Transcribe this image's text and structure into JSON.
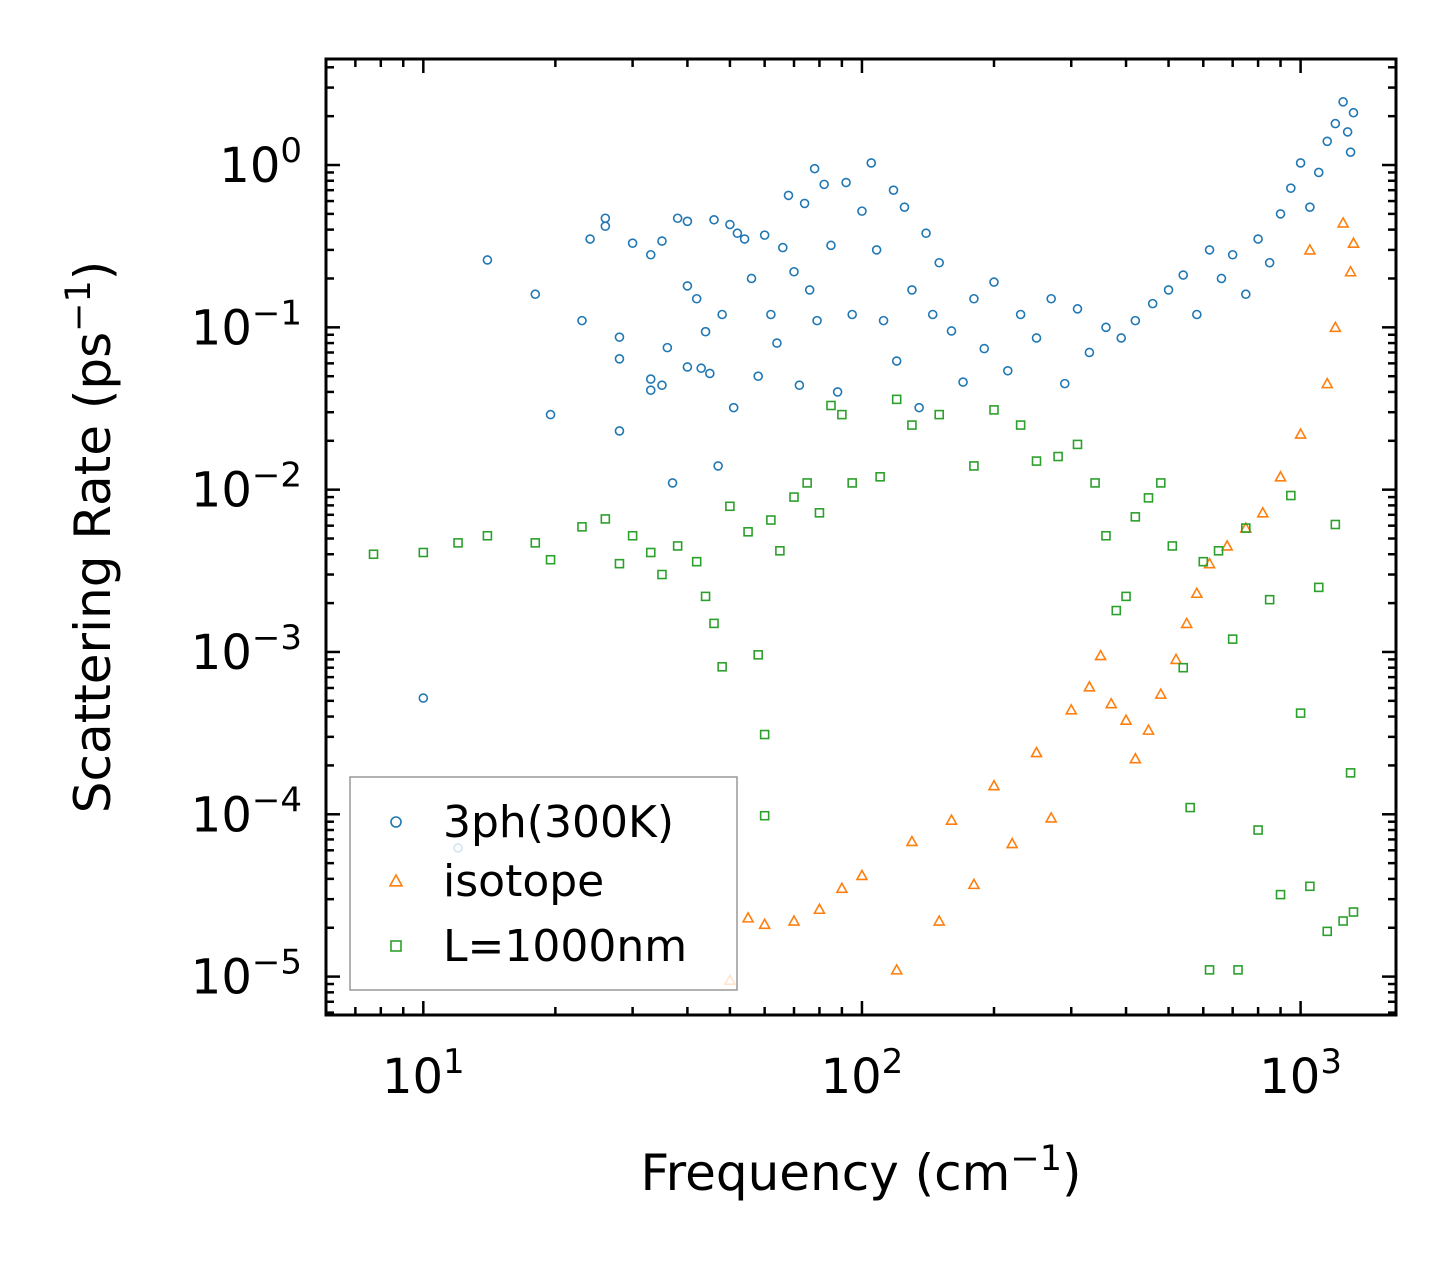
{
  "chart_data": {
    "type": "scatter",
    "title": "",
    "xlabel": "Frequency (cm",
    "xlabel_sup": "−1",
    "xlabel_end": ")",
    "ylabel": "Scattering Rate (ps",
    "ylabel_sup": "−1",
    "ylabel_end": ")",
    "xscale": "log",
    "yscale": "log",
    "xlim": [
      6.0,
      1650
    ],
    "ylim": [
      5.8e-06,
      4.5
    ],
    "x_ticks": [
      {
        "value": 10,
        "base": "10",
        "exp": "1"
      },
      {
        "value": 100,
        "base": "10",
        "exp": "2"
      },
      {
        "value": 1000,
        "base": "10",
        "exp": "3"
      }
    ],
    "y_ticks": [
      {
        "value": 1,
        "base": "10",
        "exp": "0"
      },
      {
        "value": 0.1,
        "base": "10",
        "exp": "−1"
      },
      {
        "value": 0.01,
        "base": "10",
        "exp": "−2"
      },
      {
        "value": 0.001,
        "base": "10",
        "exp": "−3"
      },
      {
        "value": 0.0001,
        "base": "10",
        "exp": "−4"
      },
      {
        "value": 1e-05,
        "base": "10",
        "exp": "−5"
      }
    ],
    "legend_position": "lower-left",
    "series": [
      {
        "name": "3ph(300K)",
        "marker": "circle",
        "color": "#1f77b4",
        "points": [
          [
            10,
            0.00052
          ],
          [
            12,
            6.2e-05
          ],
          [
            14,
            0.26
          ],
          [
            18,
            0.16
          ],
          [
            19.5,
            0.029
          ],
          [
            23,
            0.11
          ],
          [
            24,
            0.35
          ],
          [
            26,
            0.47
          ],
          [
            26,
            0.42
          ],
          [
            28,
            0.087
          ],
          [
            28,
            0.064
          ],
          [
            28,
            0.023
          ],
          [
            30,
            0.33
          ],
          [
            33,
            0.28
          ],
          [
            33,
            0.048
          ],
          [
            33,
            0.041
          ],
          [
            35,
            0.34
          ],
          [
            35,
            0.044
          ],
          [
            36,
            0.075
          ],
          [
            37,
            0.011
          ],
          [
            38,
            0.47
          ],
          [
            40,
            0.45
          ],
          [
            40,
            0.18
          ],
          [
            40,
            0.057
          ],
          [
            42,
            0.15
          ],
          [
            43,
            0.056
          ],
          [
            44,
            0.094
          ],
          [
            45,
            0.052
          ],
          [
            46,
            0.46
          ],
          [
            47,
            0.014
          ],
          [
            48,
            0.12
          ],
          [
            50,
            0.43
          ],
          [
            51,
            0.032
          ],
          [
            52,
            0.38
          ],
          [
            54,
            0.35
          ],
          [
            56,
            0.2
          ],
          [
            58,
            0.05
          ],
          [
            60,
            0.37
          ],
          [
            62,
            0.12
          ],
          [
            64,
            0.08
          ],
          [
            66,
            0.31
          ],
          [
            68,
            0.65
          ],
          [
            70,
            0.22
          ],
          [
            72,
            0.044
          ],
          [
            74,
            0.58
          ],
          [
            76,
            0.17
          ],
          [
            78,
            0.95
          ],
          [
            79,
            0.11
          ],
          [
            82,
            0.76
          ],
          [
            85,
            0.32
          ],
          [
            88,
            0.04
          ],
          [
            92,
            0.78
          ],
          [
            95,
            0.12
          ],
          [
            100,
            0.52
          ],
          [
            105,
            1.03
          ],
          [
            108,
            0.3
          ],
          [
            112,
            0.11
          ],
          [
            118,
            0.7
          ],
          [
            120,
            0.062
          ],
          [
            125,
            0.55
          ],
          [
            130,
            0.17
          ],
          [
            135,
            0.032
          ],
          [
            140,
            0.38
          ],
          [
            145,
            0.12
          ],
          [
            150,
            0.25
          ],
          [
            160,
            0.095
          ],
          [
            170,
            0.046
          ],
          [
            180,
            0.15
          ],
          [
            190,
            0.074
          ],
          [
            200,
            0.19
          ],
          [
            215,
            0.054
          ],
          [
            230,
            0.12
          ],
          [
            250,
            0.086
          ],
          [
            270,
            0.15
          ],
          [
            290,
            0.045
          ],
          [
            310,
            0.13
          ],
          [
            330,
            0.07
          ],
          [
            360,
            0.1
          ],
          [
            390,
            0.086
          ],
          [
            420,
            0.11
          ],
          [
            460,
            0.14
          ],
          [
            500,
            0.17
          ],
          [
            540,
            0.21
          ],
          [
            580,
            0.12
          ],
          [
            620,
            0.3
          ],
          [
            660,
            0.2
          ],
          [
            700,
            0.28
          ],
          [
            750,
            0.16
          ],
          [
            800,
            0.35
          ],
          [
            850,
            0.25
          ],
          [
            900,
            0.5
          ],
          [
            950,
            0.72
          ],
          [
            1000,
            1.03
          ],
          [
            1050,
            0.55
          ],
          [
            1100,
            0.9
          ],
          [
            1150,
            1.4
          ],
          [
            1200,
            1.8
          ],
          [
            1250,
            2.45
          ],
          [
            1280,
            1.6
          ],
          [
            1300,
            1.2
          ],
          [
            1320,
            2.1
          ]
        ]
      },
      {
        "name": "isotope",
        "marker": "triangle",
        "color": "#ff7f0e",
        "points": [
          [
            50,
            9.5e-06
          ],
          [
            55,
            2.3e-05
          ],
          [
            60,
            2.1e-05
          ],
          [
            70,
            2.2e-05
          ],
          [
            80,
            2.6e-05
          ],
          [
            90,
            3.5e-05
          ],
          [
            100,
            4.2e-05
          ],
          [
            120,
            1.1e-05
          ],
          [
            130,
            6.8e-05
          ],
          [
            150,
            2.2e-05
          ],
          [
            160,
            9.2e-05
          ],
          [
            180,
            3.7e-05
          ],
          [
            200,
            0.00015
          ],
          [
            220,
            6.6e-05
          ],
          [
            250,
            0.00024
          ],
          [
            270,
            9.5e-05
          ],
          [
            300,
            0.00044
          ],
          [
            330,
            0.00061
          ],
          [
            350,
            0.00095
          ],
          [
            370,
            0.00048
          ],
          [
            400,
            0.00038
          ],
          [
            420,
            0.00022
          ],
          [
            450,
            0.00033
          ],
          [
            480,
            0.00055
          ],
          [
            520,
            0.0009
          ],
          [
            550,
            0.0015
          ],
          [
            580,
            0.0023
          ],
          [
            620,
            0.0035
          ],
          [
            680,
            0.0045
          ],
          [
            750,
            0.0058
          ],
          [
            820,
            0.0072
          ],
          [
            900,
            0.012
          ],
          [
            1000,
            0.022
          ],
          [
            1050,
            0.3
          ],
          [
            1150,
            0.045
          ],
          [
            1200,
            0.1
          ],
          [
            1250,
            0.44
          ],
          [
            1300,
            0.22
          ],
          [
            1320,
            0.33
          ]
        ]
      },
      {
        "name": "L=1000nm",
        "marker": "square",
        "color": "#2ca02c",
        "points": [
          [
            7.7,
            0.004
          ],
          [
            10,
            0.0041
          ],
          [
            12,
            0.0047
          ],
          [
            14,
            0.0052
          ],
          [
            18,
            0.0047
          ],
          [
            19.5,
            0.0037
          ],
          [
            23,
            0.0059
          ],
          [
            26,
            0.0066
          ],
          [
            28,
            0.0035
          ],
          [
            30,
            0.0052
          ],
          [
            33,
            0.0041
          ],
          [
            35,
            0.003
          ],
          [
            38,
            0.0045
          ],
          [
            42,
            0.0036
          ],
          [
            44,
            0.0022
          ],
          [
            46,
            0.0015
          ],
          [
            48,
            0.00081
          ],
          [
            50,
            0.0079
          ],
          [
            55,
            0.0055
          ],
          [
            58,
            0.00096
          ],
          [
            60,
            0.00031
          ],
          [
            60,
            9.8e-05
          ],
          [
            62,
            0.0065
          ],
          [
            65,
            0.0042
          ],
          [
            70,
            0.009
          ],
          [
            75,
            0.011
          ],
          [
            80,
            0.0072
          ],
          [
            85,
            0.033
          ],
          [
            90,
            0.029
          ],
          [
            95,
            0.011
          ],
          [
            110,
            0.012
          ],
          [
            120,
            0.036
          ],
          [
            130,
            0.025
          ],
          [
            150,
            0.029
          ],
          [
            180,
            0.014
          ],
          [
            200,
            0.031
          ],
          [
            230,
            0.025
          ],
          [
            250,
            0.015
          ],
          [
            280,
            0.016
          ],
          [
            310,
            0.019
          ],
          [
            340,
            0.011
          ],
          [
            360,
            0.0052
          ],
          [
            380,
            0.0018
          ],
          [
            400,
            0.0022
          ],
          [
            420,
            0.0068
          ],
          [
            450,
            0.0089
          ],
          [
            480,
            0.011
          ],
          [
            510,
            0.0045
          ],
          [
            540,
            0.0008
          ],
          [
            560,
            0.00011
          ],
          [
            600,
            0.0036
          ],
          [
            620,
            1.1e-05
          ],
          [
            650,
            0.0042
          ],
          [
            700,
            0.0012
          ],
          [
            720,
            1.1e-05
          ],
          [
            750,
            0.0058
          ],
          [
            800,
            8e-05
          ],
          [
            850,
            0.0021
          ],
          [
            900,
            3.2e-05
          ],
          [
            950,
            0.0092
          ],
          [
            1000,
            0.00042
          ],
          [
            1050,
            3.6e-05
          ],
          [
            1100,
            0.0025
          ],
          [
            1150,
            1.9e-05
          ],
          [
            1200,
            0.0061
          ],
          [
            1250,
            2.2e-05
          ],
          [
            1300,
            0.00018
          ],
          [
            1320,
            2.5e-05
          ]
        ]
      }
    ]
  }
}
